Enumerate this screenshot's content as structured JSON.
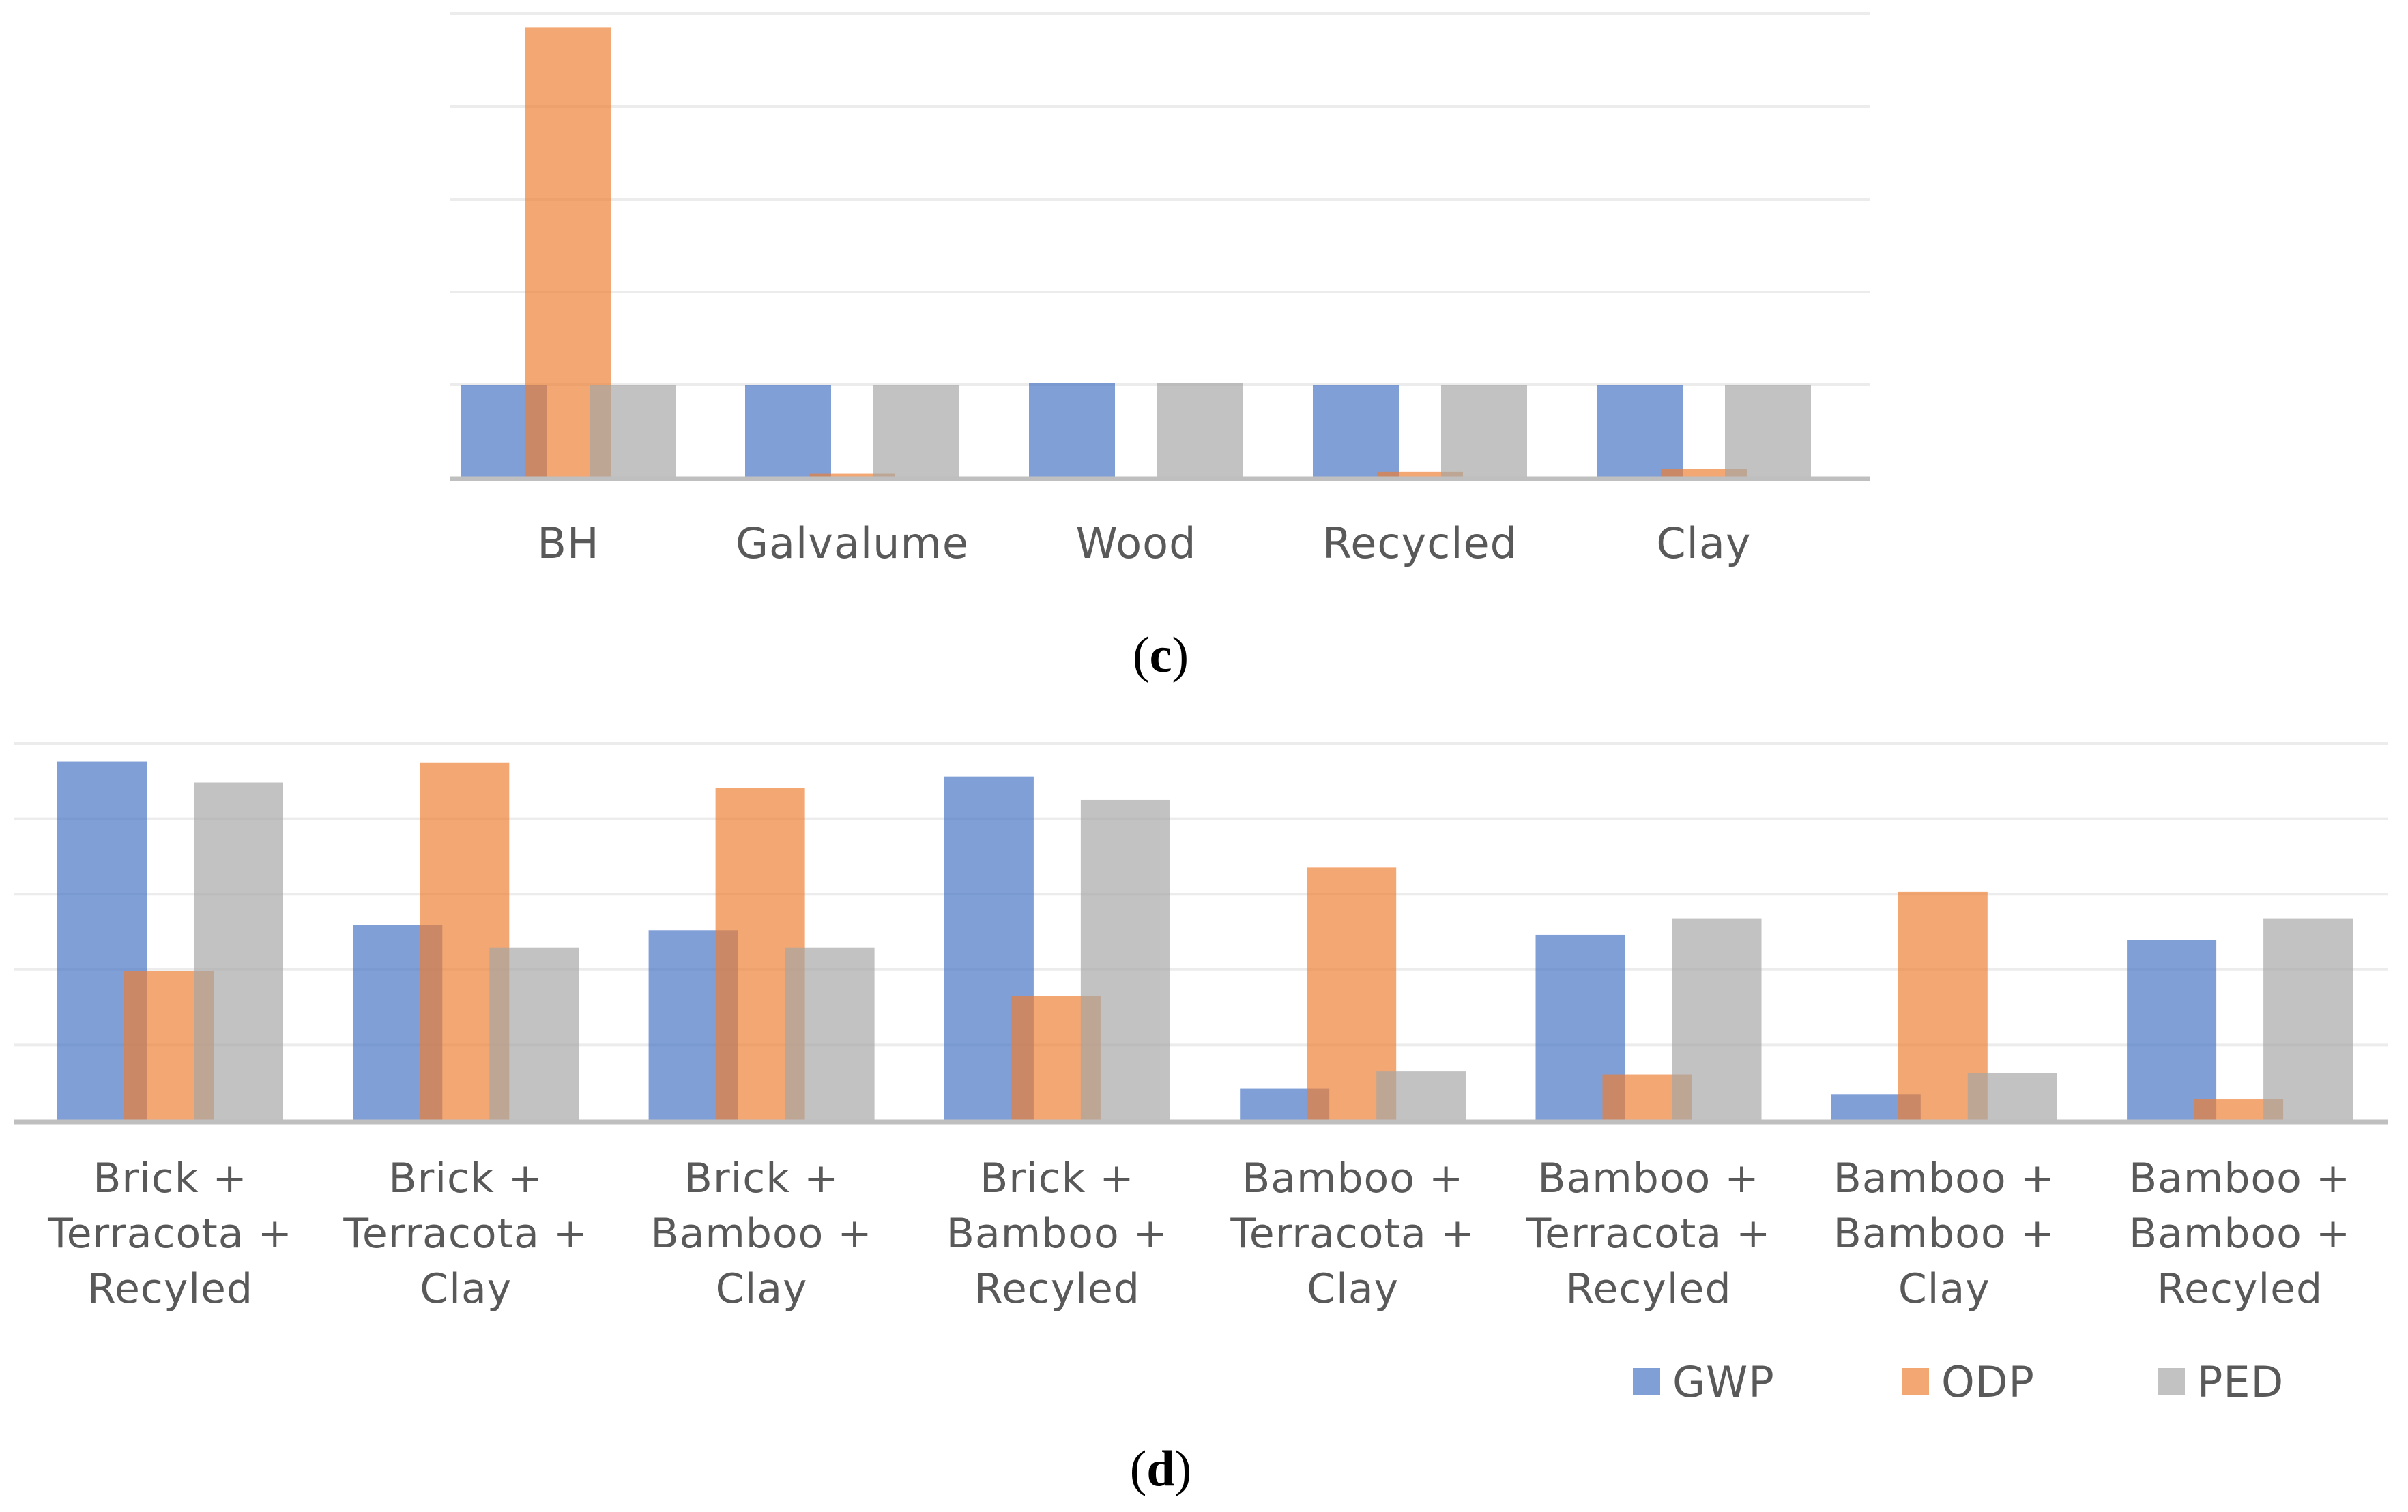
{
  "colors": {
    "GWP": "#4472C4",
    "ODP": "#ED7D31",
    "PED": "#A5A5A5",
    "gridline": "#ECECEC",
    "axis": "#BFBFBF"
  },
  "chart_data": [
    {
      "type": "bar",
      "panel": "c",
      "panel_label": {
        "open": "(",
        "letter": "c",
        "close": ")"
      },
      "categories": [
        "BH",
        "Galvalume",
        "Wood",
        "Recycled",
        "Clay"
      ],
      "series": [
        {
          "name": "GWP",
          "values": [
            1.0,
            1.0,
            1.02,
            1.0,
            1.0
          ]
        },
        {
          "name": "ODP",
          "values": [
            4.85,
            0.04,
            0.0,
            0.06,
            0.09
          ]
        },
        {
          "name": "PED",
          "values": [
            1.0,
            1.0,
            1.02,
            1.0,
            1.0
          ]
        }
      ],
      "ylim": [
        0,
        5
      ],
      "gridlines": 5,
      "xlabel": "",
      "ylabel": "",
      "legend": "none"
    },
    {
      "type": "bar",
      "panel": "d",
      "panel_label": {
        "open": "(",
        "letter": "d",
        "close": ")"
      },
      "categories": [
        [
          "Brick +",
          "Terracota +",
          "Recyled"
        ],
        [
          "Brick +",
          "Terracota +",
          "Clay"
        ],
        [
          "Brick +",
          "Bamboo +",
          "Clay"
        ],
        [
          "Brick +",
          "Bamboo +",
          "Recyled"
        ],
        [
          "Bamboo +",
          "Terracota +",
          "Clay"
        ],
        [
          "Bamboo +",
          "Terracota +",
          "Recyled"
        ],
        [
          "Bamboo +",
          "Bamboo +",
          "Clay"
        ],
        [
          "Bamboo +",
          "Bamboo +",
          "Recyled"
        ]
      ],
      "series": [
        {
          "name": "GWP",
          "values": [
            4.76,
            2.59,
            2.52,
            4.56,
            0.42,
            2.46,
            0.35,
            2.39
          ]
        },
        {
          "name": "ODP",
          "values": [
            1.98,
            4.74,
            4.41,
            1.65,
            3.36,
            0.61,
            3.03,
            0.28
          ]
        },
        {
          "name": "PED",
          "values": [
            4.48,
            2.29,
            2.29,
            4.25,
            0.65,
            2.68,
            0.63,
            2.68
          ]
        }
      ],
      "ylim": [
        0,
        5
      ],
      "gridlines": 5,
      "xlabel": "",
      "ylabel": "",
      "legend": "bottom-right"
    }
  ]
}
